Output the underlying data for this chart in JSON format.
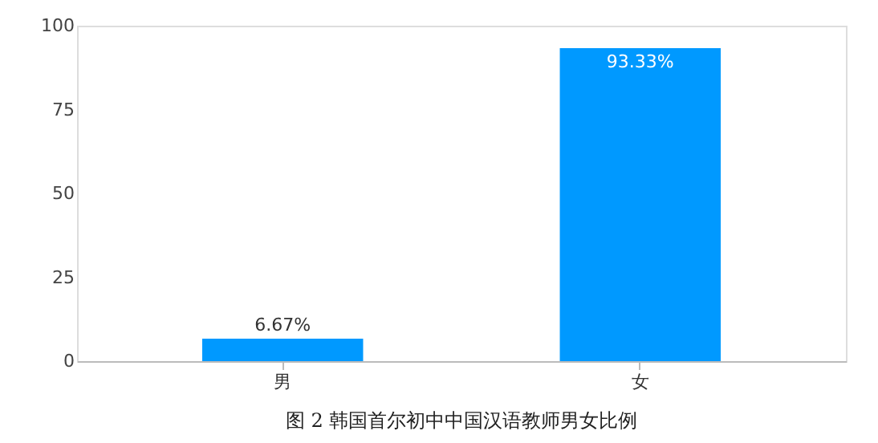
{
  "chart_data": {
    "type": "bar",
    "title": "图 2 韩国首尔初中中国汉语教师男女比例",
    "categories": [
      "男",
      "女"
    ],
    "values": [
      6.67,
      93.33
    ],
    "value_labels": [
      "6.67%",
      "93.33%"
    ],
    "color": "#0099ff",
    "ylim": [
      0,
      100
    ],
    "yticks": [
      0,
      25,
      50,
      75,
      100
    ],
    "grid": false
  }
}
